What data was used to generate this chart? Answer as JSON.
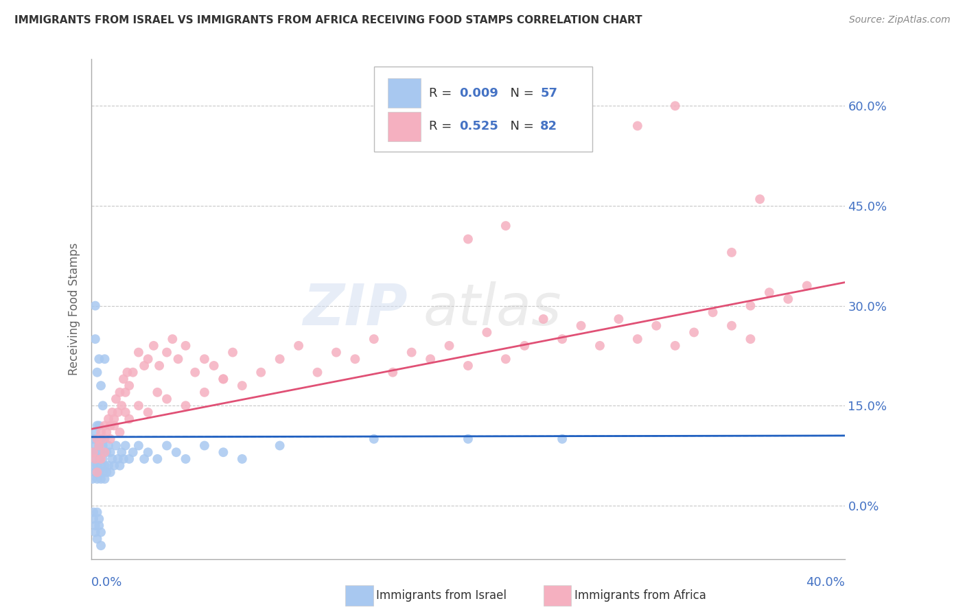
{
  "title": "IMMIGRANTS FROM ISRAEL VS IMMIGRANTS FROM AFRICA RECEIVING FOOD STAMPS CORRELATION CHART",
  "source": "Source: ZipAtlas.com",
  "ylabel": "Receiving Food Stamps",
  "yticks": [
    0.0,
    0.15,
    0.3,
    0.45,
    0.6
  ],
  "ytick_labels": [
    "0.0%",
    "15.0%",
    "30.0%",
    "45.0%",
    "60.0%"
  ],
  "xlim": [
    0.0,
    0.4
  ],
  "ylim": [
    -0.08,
    0.67
  ],
  "israel_color": "#a8c8f0",
  "africa_color": "#f5b0c0",
  "israel_line_color": "#2060c0",
  "africa_line_color": "#e05075",
  "israel_R": 0.009,
  "israel_N": 57,
  "africa_R": 0.525,
  "africa_N": 82,
  "watermark_zip": "ZIP",
  "watermark_atlas": "atlas",
  "background_color": "#ffffff",
  "grid_color": "#c8c8c8",
  "legend_text_color": "#4472c4",
  "israel_scatter_x": [
    0.0005,
    0.001,
    0.001,
    0.001,
    0.002,
    0.002,
    0.002,
    0.002,
    0.003,
    0.003,
    0.003,
    0.003,
    0.003,
    0.004,
    0.004,
    0.004,
    0.004,
    0.005,
    0.005,
    0.005,
    0.005,
    0.006,
    0.006,
    0.006,
    0.007,
    0.007,
    0.007,
    0.008,
    0.008,
    0.009,
    0.009,
    0.01,
    0.01,
    0.011,
    0.012,
    0.013,
    0.014,
    0.015,
    0.016,
    0.017,
    0.018,
    0.02,
    0.022,
    0.025,
    0.028,
    0.03,
    0.035,
    0.04,
    0.045,
    0.05,
    0.06,
    0.07,
    0.08,
    0.1,
    0.15,
    0.2,
    0.25
  ],
  "israel_scatter_y": [
    0.04,
    0.06,
    0.08,
    0.1,
    0.05,
    0.07,
    0.09,
    0.11,
    0.04,
    0.06,
    0.08,
    0.1,
    0.12,
    0.05,
    0.07,
    0.09,
    0.12,
    0.04,
    0.06,
    0.08,
    0.1,
    0.05,
    0.07,
    0.09,
    0.04,
    0.06,
    0.1,
    0.05,
    0.08,
    0.06,
    0.09,
    0.05,
    0.08,
    0.07,
    0.06,
    0.09,
    0.07,
    0.06,
    0.08,
    0.07,
    0.09,
    0.07,
    0.08,
    0.09,
    0.07,
    0.08,
    0.07,
    0.09,
    0.08,
    0.07,
    0.09,
    0.08,
    0.07,
    0.09,
    0.1,
    0.1,
    0.1
  ],
  "israel_scatter_y_neg": [
    -0.01,
    -0.02,
    -0.03,
    -0.04,
    -0.05,
    -0.01,
    -0.02,
    -0.03,
    -0.04,
    -0.06,
    0.25,
    0.3,
    0.2,
    0.22,
    0.18,
    0.15,
    0.22
  ],
  "israel_scatter_x_neg": [
    0.001,
    0.001,
    0.002,
    0.002,
    0.003,
    0.003,
    0.004,
    0.004,
    0.005,
    0.005,
    0.002,
    0.002,
    0.003,
    0.004,
    0.005,
    0.006,
    0.007
  ],
  "africa_scatter_x": [
    0.001,
    0.002,
    0.003,
    0.004,
    0.005,
    0.006,
    0.007,
    0.008,
    0.009,
    0.01,
    0.011,
    0.012,
    0.013,
    0.014,
    0.015,
    0.016,
    0.017,
    0.018,
    0.019,
    0.02,
    0.022,
    0.025,
    0.028,
    0.03,
    0.033,
    0.036,
    0.04,
    0.043,
    0.046,
    0.05,
    0.055,
    0.06,
    0.065,
    0.07,
    0.075,
    0.08,
    0.09,
    0.1,
    0.11,
    0.12,
    0.13,
    0.14,
    0.15,
    0.16,
    0.17,
    0.18,
    0.19,
    0.2,
    0.21,
    0.22,
    0.23,
    0.24,
    0.25,
    0.26,
    0.27,
    0.28,
    0.29,
    0.3,
    0.31,
    0.32,
    0.33,
    0.34,
    0.35,
    0.003,
    0.005,
    0.007,
    0.01,
    0.012,
    0.015,
    0.018,
    0.02,
    0.025,
    0.03,
    0.035,
    0.04,
    0.05,
    0.06,
    0.07,
    0.35,
    0.36,
    0.37,
    0.38
  ],
  "africa_scatter_y": [
    0.08,
    0.07,
    0.1,
    0.09,
    0.11,
    0.1,
    0.12,
    0.11,
    0.13,
    0.12,
    0.14,
    0.13,
    0.16,
    0.14,
    0.17,
    0.15,
    0.19,
    0.17,
    0.2,
    0.18,
    0.2,
    0.23,
    0.21,
    0.22,
    0.24,
    0.21,
    0.23,
    0.25,
    0.22,
    0.24,
    0.2,
    0.22,
    0.21,
    0.19,
    0.23,
    0.18,
    0.2,
    0.22,
    0.24,
    0.2,
    0.23,
    0.22,
    0.25,
    0.2,
    0.23,
    0.22,
    0.24,
    0.21,
    0.26,
    0.22,
    0.24,
    0.28,
    0.25,
    0.27,
    0.24,
    0.28,
    0.25,
    0.27,
    0.24,
    0.26,
    0.29,
    0.27,
    0.25,
    0.05,
    0.07,
    0.08,
    0.1,
    0.12,
    0.11,
    0.14,
    0.13,
    0.15,
    0.14,
    0.17,
    0.16,
    0.15,
    0.17,
    0.19,
    0.3,
    0.32,
    0.31,
    0.33
  ],
  "africa_scatter_y_high": [
    0.57,
    0.6,
    0.38,
    0.46,
    0.4,
    0.42
  ],
  "africa_scatter_x_high": [
    0.29,
    0.31,
    0.34,
    0.355,
    0.2,
    0.22
  ],
  "israel_trend_y0": 0.103,
  "israel_trend_y1": 0.105,
  "africa_trend_y0": 0.115,
  "africa_trend_y1": 0.335
}
